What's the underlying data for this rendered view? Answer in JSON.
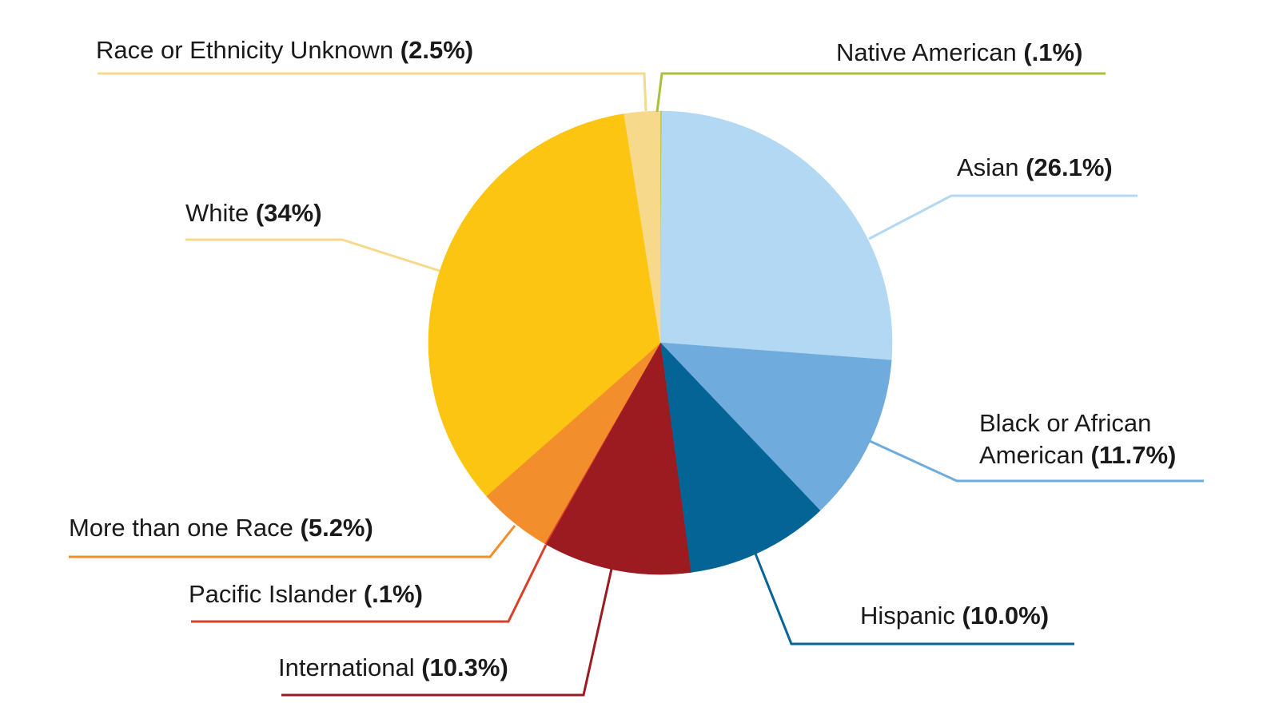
{
  "chart_data": {
    "type": "pie",
    "title": "",
    "legend": "leader-line labels around pie",
    "slices": [
      {
        "label": "Native American",
        "value": 0.1,
        "value_text": "(.1%)",
        "color": "#a6c23b",
        "line_color": "#a6c23b"
      },
      {
        "label": "Asian",
        "value": 26.1,
        "value_text": "(26.1%)",
        "color": "#b2d8f3",
        "line_color": "#b2d8f3"
      },
      {
        "label": "Black or African American",
        "value": 11.7,
        "value_text": "(11.7%)",
        "color": "#6fabdc",
        "line_color": "#6fabdc"
      },
      {
        "label": "Hispanic",
        "value": 10.0,
        "value_text": "(10.0%)",
        "color": "#056496",
        "line_color": "#056496"
      },
      {
        "label": "International",
        "value": 10.3,
        "value_text": "(10.3%)",
        "color": "#9b1b20",
        "line_color": "#9b1b20"
      },
      {
        "label": "Pacific Islander",
        "value": 0.1,
        "value_text": "(.1%)",
        "color": "#d8402a",
        "line_color": "#d8402a"
      },
      {
        "label": "More than one Race",
        "value": 5.2,
        "value_text": "(5.2%)",
        "color": "#f28e2b",
        "line_color": "#f28e2b"
      },
      {
        "label": "White",
        "value": 34,
        "value_text": "(34%)",
        "color": "#fbc511",
        "line_color": "#f6d98a"
      },
      {
        "label": "Race or Ethnicity Unknown",
        "value": 2.5,
        "value_text": "(2.5%)",
        "color": "#f6d98a",
        "line_color": "#f6d98a"
      }
    ]
  }
}
